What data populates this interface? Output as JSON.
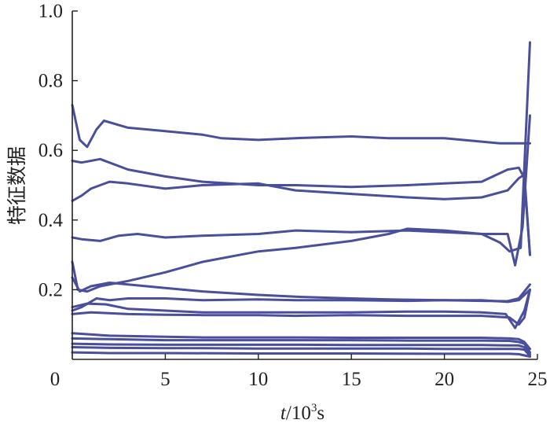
{
  "chart_data": {
    "type": "line",
    "title": "",
    "ylabel": "特征数据",
    "xlabel_parts": {
      "var": "t",
      "slash_ten": "/10",
      "exp": "3",
      "unit": "s"
    },
    "xlim": [
      0,
      25
    ],
    "ylim": [
      0,
      1.0
    ],
    "x_ticks": [
      0,
      5,
      10,
      15,
      20,
      25
    ],
    "x_tick_labels": [
      "0",
      "5",
      "10",
      "15",
      "20",
      "25"
    ],
    "y_ticks": [
      0.2,
      0.4,
      0.6,
      0.8,
      1.0
    ],
    "y_tick_labels": [
      "0.2",
      "0.4",
      "0.6",
      "0.8",
      "1.0"
    ],
    "grid": false,
    "legend": "none",
    "line_color": "#4a4f9b",
    "series": [
      {
        "x": [
          0,
          0.4,
          0.8,
          1.3,
          1.7,
          3,
          5,
          7,
          8,
          10,
          12,
          15,
          17,
          20,
          22,
          23,
          24,
          24.3,
          24.6
        ],
        "y": [
          0.73,
          0.63,
          0.61,
          0.66,
          0.685,
          0.665,
          0.655,
          0.645,
          0.635,
          0.63,
          0.635,
          0.64,
          0.635,
          0.635,
          0.625,
          0.62,
          0.62,
          0.62,
          0.62
        ]
      },
      {
        "x": [
          0,
          0.5,
          1.5,
          3,
          5,
          7,
          10,
          12,
          15,
          18,
          20,
          22,
          23.4,
          24,
          24.3,
          24.6
        ],
        "y": [
          0.57,
          0.565,
          0.575,
          0.545,
          0.525,
          0.51,
          0.5,
          0.5,
          0.495,
          0.5,
          0.505,
          0.51,
          0.545,
          0.55,
          0.52,
          0.3
        ]
      },
      {
        "x": [
          0,
          0.5,
          1,
          2,
          3,
          5,
          7,
          10,
          12,
          15,
          18,
          20,
          22,
          23.4,
          24,
          24.3,
          24.6
        ],
        "y": [
          0.455,
          0.47,
          0.49,
          0.51,
          0.505,
          0.49,
          0.5,
          0.505,
          0.485,
          0.475,
          0.465,
          0.46,
          0.465,
          0.485,
          0.52,
          0.53,
          0.3
        ]
      },
      {
        "x": [
          0,
          0.5,
          1.5,
          2.5,
          3.5,
          5,
          7,
          10,
          12,
          15,
          18,
          20,
          22,
          23.4,
          23.8,
          24.2,
          24.6
        ],
        "y": [
          0.35,
          0.345,
          0.34,
          0.355,
          0.36,
          0.35,
          0.355,
          0.36,
          0.37,
          0.365,
          0.37,
          0.365,
          0.36,
          0.36,
          0.27,
          0.38,
          0.7
        ]
      },
      {
        "x": [
          0,
          0.3,
          0.8,
          1.5,
          3,
          5,
          7,
          10,
          12,
          15,
          17,
          18,
          20,
          22,
          23,
          23.5,
          24.1,
          24.6
        ],
        "y": [
          0.28,
          0.2,
          0.195,
          0.21,
          0.225,
          0.25,
          0.28,
          0.31,
          0.32,
          0.34,
          0.36,
          0.375,
          0.37,
          0.36,
          0.335,
          0.31,
          0.32,
          0.91
        ]
      },
      {
        "x": [
          0,
          0.4,
          1,
          2,
          3,
          5,
          7,
          10,
          12,
          15,
          17,
          20,
          22,
          23.4,
          24,
          24.6
        ],
        "y": [
          0.235,
          0.195,
          0.21,
          0.22,
          0.215,
          0.205,
          0.195,
          0.185,
          0.18,
          0.175,
          0.172,
          0.17,
          0.168,
          0.167,
          0.175,
          0.215
        ]
      },
      {
        "x": [
          0,
          0.5,
          1.3,
          2,
          3,
          5,
          7,
          10,
          12,
          15,
          18,
          20,
          22,
          23.4,
          24,
          24.6
        ],
        "y": [
          0.14,
          0.15,
          0.175,
          0.17,
          0.175,
          0.175,
          0.17,
          0.172,
          0.17,
          0.17,
          0.168,
          0.17,
          0.17,
          0.165,
          0.17,
          0.2
        ]
      },
      {
        "x": [
          0,
          0.8,
          1.8,
          3,
          5,
          7,
          10,
          12,
          15,
          18,
          20,
          22,
          23.3,
          23.8,
          24.3,
          24.6
        ],
        "y": [
          0.15,
          0.16,
          0.158,
          0.145,
          0.14,
          0.135,
          0.135,
          0.135,
          0.135,
          0.137,
          0.137,
          0.135,
          0.13,
          0.09,
          0.14,
          0.2
        ]
      },
      {
        "x": [
          0,
          1,
          3,
          5,
          7,
          10,
          12,
          15,
          18,
          20,
          22,
          23.5,
          24,
          24.3,
          24.6
        ],
        "y": [
          0.13,
          0.135,
          0.13,
          0.128,
          0.127,
          0.127,
          0.125,
          0.127,
          0.125,
          0.125,
          0.125,
          0.12,
          0.1,
          0.12,
          0.2
        ]
      },
      {
        "x": [
          0,
          2,
          5,
          7,
          10,
          12,
          15,
          18,
          20,
          22,
          23.5,
          24,
          24.3,
          24.6
        ],
        "y": [
          0.075,
          0.068,
          0.065,
          0.063,
          0.063,
          0.063,
          0.062,
          0.062,
          0.062,
          0.062,
          0.06,
          0.058,
          0.05,
          0.03
        ]
      },
      {
        "x": [
          0,
          2,
          5,
          7,
          10,
          12,
          15,
          18,
          20,
          22,
          23.5,
          24,
          24.3,
          24.6
        ],
        "y": [
          0.06,
          0.058,
          0.055,
          0.055,
          0.055,
          0.055,
          0.055,
          0.054,
          0.054,
          0.054,
          0.053,
          0.05,
          0.045,
          0.02
        ]
      },
      {
        "x": [
          0,
          2,
          5,
          7,
          10,
          12,
          15,
          18,
          20,
          22,
          23.5,
          24,
          24.3,
          24.6
        ],
        "y": [
          0.045,
          0.043,
          0.042,
          0.042,
          0.042,
          0.042,
          0.041,
          0.041,
          0.041,
          0.041,
          0.04,
          0.04,
          0.035,
          0.015
        ]
      },
      {
        "x": [
          0,
          2,
          5,
          7,
          10,
          12,
          15,
          18,
          20,
          22,
          23.5,
          24,
          24.3,
          24.6
        ],
        "y": [
          0.035,
          0.033,
          0.032,
          0.032,
          0.031,
          0.031,
          0.031,
          0.031,
          0.03,
          0.03,
          0.03,
          0.03,
          0.028,
          0.01
        ]
      },
      {
        "x": [
          0,
          2,
          5,
          10,
          15,
          20,
          23.5,
          24,
          24.6
        ],
        "y": [
          0.02,
          0.018,
          0.018,
          0.017,
          0.017,
          0.016,
          0.016,
          0.015,
          0.008
        ]
      }
    ]
  }
}
